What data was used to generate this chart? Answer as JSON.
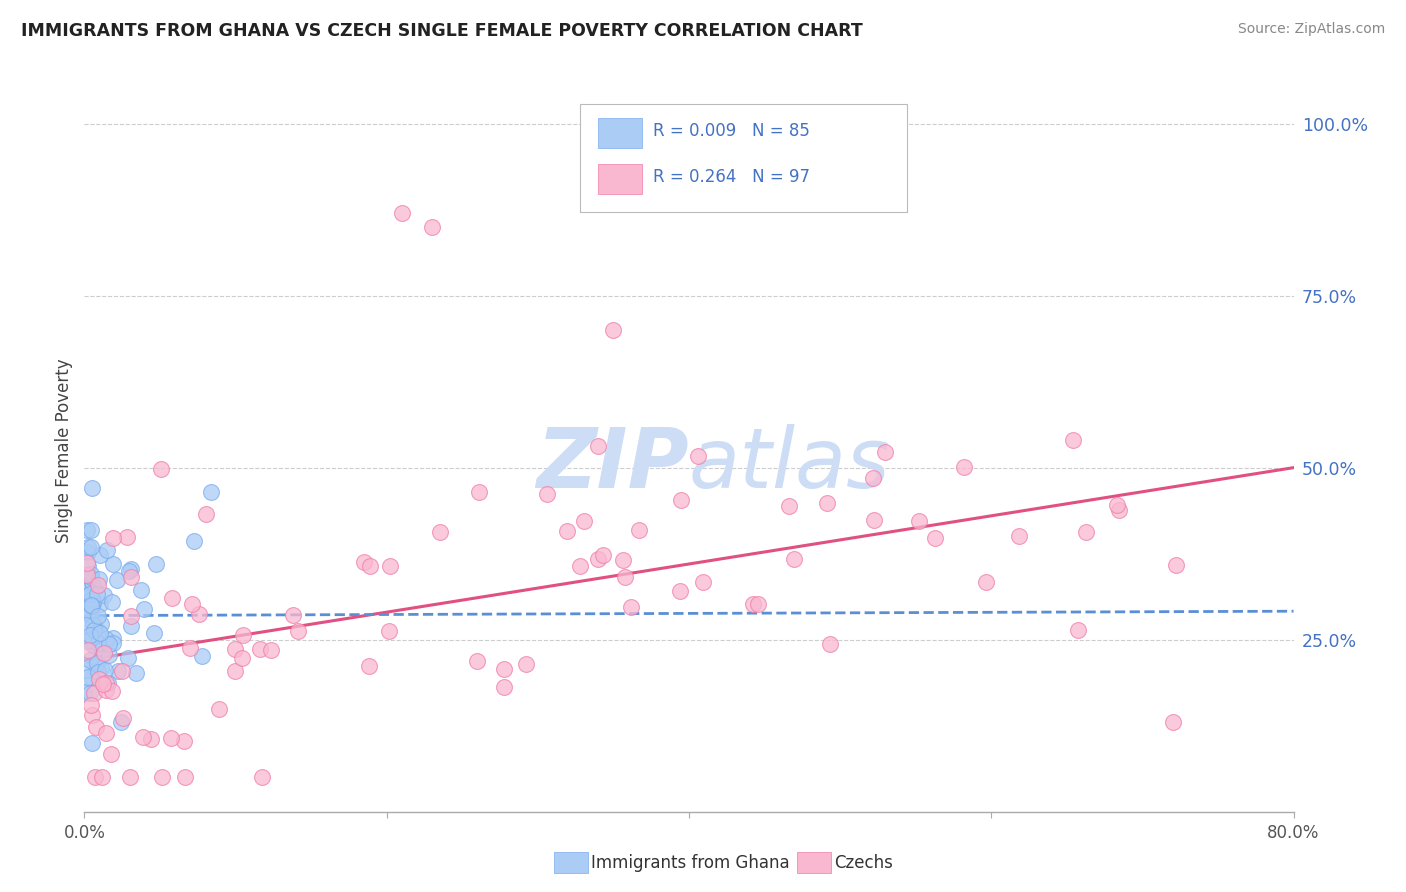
{
  "title": "IMMIGRANTS FROM GHANA VS CZECH SINGLE FEMALE POVERTY CORRELATION CHART",
  "source": "Source: ZipAtlas.com",
  "ylabel": "Single Female Poverty",
  "series1_label": "Immigrants from Ghana",
  "series2_label": "Czechs",
  "series1_color": "#aaccf5",
  "series2_color": "#f9b8d0",
  "series1_edge": "#7aacef",
  "series2_edge": "#f07faa",
  "trendline1_color": "#5b8fd5",
  "trendline2_color": "#e05080",
  "watermark_color": "#ccddf5",
  "background_color": "#ffffff",
  "grid_color": "#c8c8c8",
  "xmin": 0.0,
  "xmax": 0.8,
  "ymin": 0.0,
  "ymax": 1.05,
  "series1_R": 0.009,
  "series1_N": 85,
  "series2_R": 0.264,
  "series2_N": 97,
  "ytick_positions": [
    0.25,
    0.5,
    0.75,
    1.0
  ],
  "ytick_labels": [
    "25.0%",
    "50.0%",
    "75.0%",
    "100.0%"
  ],
  "legend_R1": "R = 0.009",
  "legend_N1": "N = 85",
  "legend_R2": "R = 0.264",
  "legend_N2": "N = 97"
}
